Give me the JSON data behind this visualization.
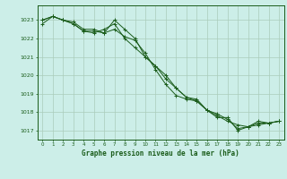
{
  "background_color": "#cceee8",
  "grid_color": "#aaccbb",
  "line_color": "#1a5c1a",
  "marker_color": "#1a5c1a",
  "title": "Graphe pression niveau de la mer (hPa)",
  "ylim": [
    1016.5,
    1023.8
  ],
  "xlim": [
    -0.5,
    23.5
  ],
  "yticks": [
    1017,
    1018,
    1019,
    1020,
    1021,
    1022,
    1023
  ],
  "xticks": [
    0,
    1,
    2,
    3,
    4,
    5,
    6,
    7,
    8,
    9,
    10,
    11,
    12,
    13,
    14,
    15,
    16,
    17,
    18,
    19,
    20,
    21,
    22,
    23
  ],
  "xtick_labels": [
    "0",
    "1",
    "2",
    "3",
    "4",
    "5",
    "6",
    "7",
    "8",
    "9",
    "10",
    "11",
    "12",
    "13",
    "14",
    "15",
    "16",
    "17",
    "18",
    "19",
    "20",
    "21",
    "22",
    "23"
  ],
  "series": [
    [
      1022.8,
      1023.2,
      1023.0,
      1022.8,
      1022.4,
      1022.3,
      1022.5,
      1022.8,
      1022.0,
      1021.5,
      1021.0,
      1020.5,
      1020.0,
      1019.3,
      1018.8,
      1018.7,
      1018.1,
      1017.8,
      1017.5,
      1017.3,
      1017.2,
      1017.5,
      1017.4,
      1017.5
    ],
    [
      1023.0,
      1023.2,
      1023.0,
      1022.9,
      1022.5,
      1022.5,
      1022.3,
      1022.5,
      1022.1,
      1021.9,
      1021.2,
      1020.3,
      1019.5,
      1018.9,
      1018.7,
      1018.6,
      1018.1,
      1017.7,
      1017.7,
      1017.0,
      1017.2,
      1017.3,
      1017.4,
      1017.5
    ],
    [
      1023.0,
      1023.2,
      1023.0,
      1022.8,
      1022.4,
      1022.4,
      1022.3,
      1023.0,
      1022.5,
      1022.0,
      1021.0,
      1020.5,
      1019.8,
      1019.3,
      1018.8,
      1018.6,
      1018.1,
      1017.9,
      1017.6,
      1017.1,
      1017.2,
      1017.4,
      1017.4,
      1017.5
    ]
  ]
}
